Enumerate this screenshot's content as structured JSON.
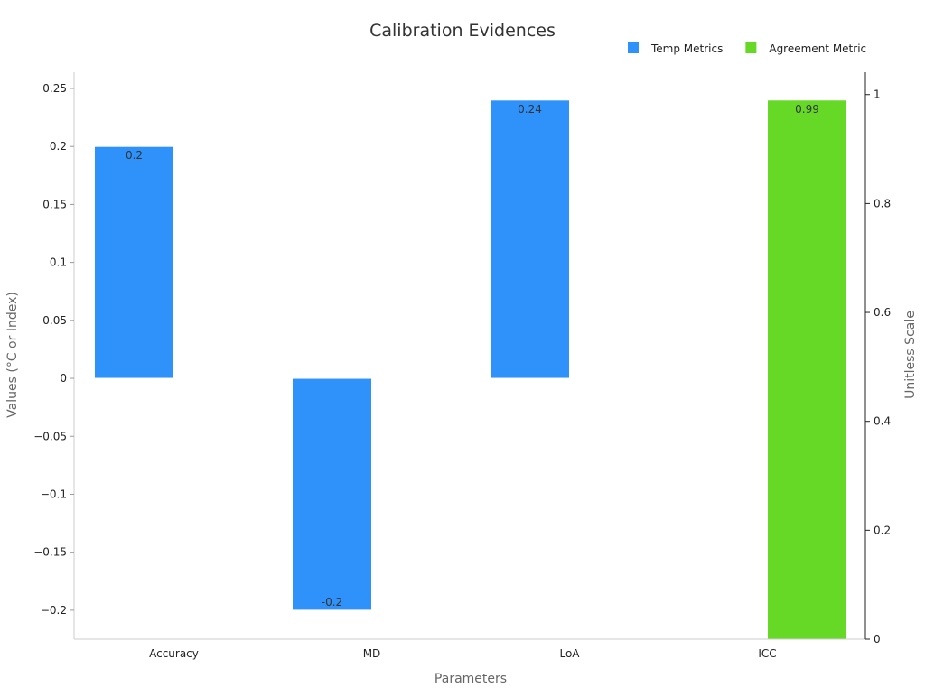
{
  "chart_data": {
    "type": "bar",
    "title": "Calibration Evidences",
    "xlabel": "Parameters",
    "ylabel": "Values (°C or Index)",
    "y2label": "Unitless Scale",
    "categories": [
      "Accuracy",
      "MD",
      "LoA",
      "ICC"
    ],
    "ylim": [
      -0.225,
      0.264
    ],
    "y2lim": [
      0,
      1.041
    ],
    "yticks": [
      -0.2,
      -0.15,
      -0.1,
      -0.05,
      0,
      0.05,
      0.1,
      0.15,
      0.2,
      0.25
    ],
    "ytick_labels": [
      "−0.2",
      "−0.15",
      "−0.1",
      "−0.05",
      "0",
      "0.05",
      "0.1",
      "0.15",
      "0.2",
      "0.25"
    ],
    "y2ticks": [
      0,
      0.2,
      0.4,
      0.6,
      0.8,
      1
    ],
    "y2tick_labels": [
      "0",
      "0.2",
      "0.4",
      "0.6",
      "0.8",
      "1"
    ],
    "grid": false,
    "legend_placement": "top-right",
    "series": [
      {
        "name": "Temp Metrics",
        "axis": "left",
        "color": "#2f91fa",
        "values": [
          0.2,
          -0.2,
          0.24,
          null
        ],
        "labels": [
          "0.2",
          "-0.2",
          "0.24",
          ""
        ]
      },
      {
        "name": "Agreement Metric",
        "axis": "right",
        "color": "#66d926",
        "values": [
          null,
          null,
          null,
          0.99
        ],
        "labels": [
          "",
          "",
          "",
          "0.99"
        ]
      }
    ]
  }
}
